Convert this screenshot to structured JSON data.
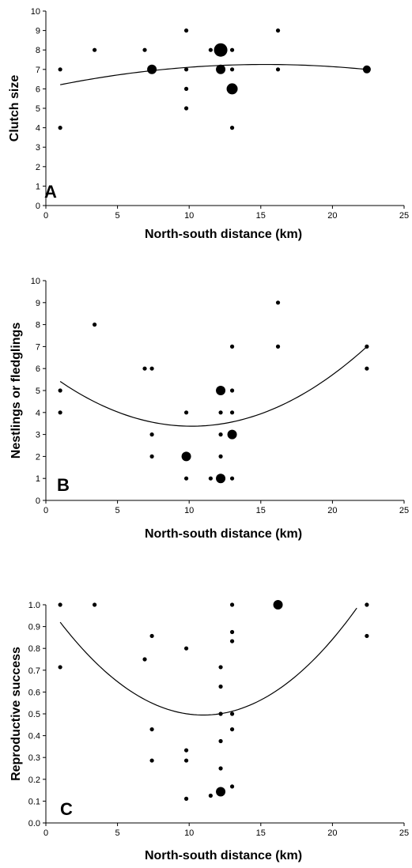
{
  "chart_data": [
    {
      "type": "scatter",
      "panel_label": "A",
      "xlabel": "North-south distance (km)",
      "ylabel": "Clutch size",
      "xlim": [
        0,
        25
      ],
      "ylim": [
        0,
        10
      ],
      "xticks": [
        0,
        5,
        10,
        15,
        20,
        25
      ],
      "yticks": [
        0,
        1,
        2,
        3,
        4,
        5,
        6,
        7,
        8,
        9,
        10
      ],
      "ytick_labels": [
        "0",
        "1",
        "2",
        "3",
        "4",
        "5",
        "6",
        "7",
        "8",
        "9",
        "10"
      ],
      "points": [
        {
          "x": 1.0,
          "y": 7,
          "n": 1
        },
        {
          "x": 1.0,
          "y": 4,
          "n": 1
        },
        {
          "x": 3.4,
          "y": 8,
          "n": 1
        },
        {
          "x": 6.9,
          "y": 8,
          "n": 1
        },
        {
          "x": 7.4,
          "y": 7,
          "n": 3
        },
        {
          "x": 9.8,
          "y": 9,
          "n": 1
        },
        {
          "x": 9.8,
          "y": 7,
          "n": 1
        },
        {
          "x": 9.8,
          "y": 6,
          "n": 1
        },
        {
          "x": 9.8,
          "y": 5,
          "n": 1
        },
        {
          "x": 11.5,
          "y": 8,
          "n": 1
        },
        {
          "x": 12.2,
          "y": 8,
          "n": 5
        },
        {
          "x": 12.2,
          "y": 7,
          "n": 3
        },
        {
          "x": 13.0,
          "y": 8,
          "n": 1
        },
        {
          "x": 13.0,
          "y": 7,
          "n": 1
        },
        {
          "x": 13.0,
          "y": 6,
          "n": 4
        },
        {
          "x": 13.0,
          "y": 4,
          "n": 1
        },
        {
          "x": 16.2,
          "y": 9,
          "n": 1
        },
        {
          "x": 16.2,
          "y": 7,
          "n": 1
        },
        {
          "x": 22.4,
          "y": 7,
          "n": 2
        }
      ],
      "fit_curve": {
        "type": "quadratic",
        "x_range": [
          1,
          22.4
        ],
        "coefficients": [
          6.06,
          0.1561,
          -0.0051
        ]
      }
    },
    {
      "type": "scatter",
      "panel_label": "B",
      "xlabel": "North-south distance (km)",
      "ylabel": "Nestlings or fledglings",
      "xlim": [
        0,
        25
      ],
      "ylim": [
        0,
        10
      ],
      "xticks": [
        0,
        5,
        10,
        15,
        20,
        25
      ],
      "yticks": [
        0,
        1,
        2,
        3,
        4,
        5,
        6,
        7,
        8,
        9,
        10
      ],
      "ytick_labels": [
        "0",
        "1",
        "2",
        "3",
        "4",
        "5",
        "6",
        "7",
        "8",
        "9",
        "10"
      ],
      "points": [
        {
          "x": 1.0,
          "y": 5,
          "n": 1
        },
        {
          "x": 1.0,
          "y": 4,
          "n": 1
        },
        {
          "x": 3.4,
          "y": 8,
          "n": 1
        },
        {
          "x": 6.9,
          "y": 6,
          "n": 1
        },
        {
          "x": 7.4,
          "y": 6,
          "n": 1
        },
        {
          "x": 7.4,
          "y": 3,
          "n": 1
        },
        {
          "x": 7.4,
          "y": 2,
          "n": 1
        },
        {
          "x": 9.8,
          "y": 4,
          "n": 1
        },
        {
          "x": 9.8,
          "y": 2,
          "n": 3
        },
        {
          "x": 9.8,
          "y": 1,
          "n": 1
        },
        {
          "x": 11.5,
          "y": 1,
          "n": 1
        },
        {
          "x": 12.2,
          "y": 5,
          "n": 3
        },
        {
          "x": 12.2,
          "y": 4,
          "n": 1
        },
        {
          "x": 12.2,
          "y": 3,
          "n": 1
        },
        {
          "x": 12.2,
          "y": 2,
          "n": 1
        },
        {
          "x": 12.2,
          "y": 1,
          "n": 3
        },
        {
          "x": 13.0,
          "y": 7,
          "n": 1
        },
        {
          "x": 13.0,
          "y": 5,
          "n": 1
        },
        {
          "x": 13.0,
          "y": 4,
          "n": 1
        },
        {
          "x": 13.0,
          "y": 3,
          "n": 3
        },
        {
          "x": 13.0,
          "y": 1,
          "n": 1
        },
        {
          "x": 16.2,
          "y": 9,
          "n": 1
        },
        {
          "x": 16.2,
          "y": 7,
          "n": 1
        },
        {
          "x": 22.4,
          "y": 7,
          "n": 1
        },
        {
          "x": 22.4,
          "y": 6,
          "n": 1
        }
      ],
      "fit_curve": {
        "type": "quadratic",
        "x_range": [
          1,
          22.4
        ],
        "coefficients": [
          5.88,
          -0.4923,
          0.0242
        ]
      }
    },
    {
      "type": "scatter",
      "panel_label": "C",
      "xlabel": "North-south distance (km)",
      "ylabel": "Reproductive success",
      "xlim": [
        0,
        25
      ],
      "ylim": [
        0,
        1
      ],
      "xticks": [
        0,
        5,
        10,
        15,
        20,
        25
      ],
      "yticks": [
        0,
        0.1,
        0.2,
        0.3,
        0.4,
        0.5,
        0.6,
        0.7,
        0.8,
        0.9,
        1.0
      ],
      "ytick_labels": [
        "0.0",
        "0.1",
        "0.2",
        "0.3",
        "0.4",
        "0.5",
        "0.6",
        "0.7",
        "0.8",
        "0.9",
        "1.0"
      ],
      "points": [
        {
          "x": 1.0,
          "y": 1.0,
          "n": 1
        },
        {
          "x": 1.0,
          "y": 0.714,
          "n": 1
        },
        {
          "x": 3.4,
          "y": 1.0,
          "n": 1
        },
        {
          "x": 6.9,
          "y": 0.75,
          "n": 1
        },
        {
          "x": 7.4,
          "y": 0.857,
          "n": 1
        },
        {
          "x": 7.4,
          "y": 0.429,
          "n": 1
        },
        {
          "x": 7.4,
          "y": 0.286,
          "n": 1
        },
        {
          "x": 9.8,
          "y": 0.8,
          "n": 1
        },
        {
          "x": 9.8,
          "y": 0.333,
          "n": 1
        },
        {
          "x": 9.8,
          "y": 0.286,
          "n": 1
        },
        {
          "x": 9.8,
          "y": 0.111,
          "n": 1
        },
        {
          "x": 11.5,
          "y": 0.125,
          "n": 1
        },
        {
          "x": 12.2,
          "y": 0.714,
          "n": 1
        },
        {
          "x": 12.2,
          "y": 0.625,
          "n": 1
        },
        {
          "x": 12.2,
          "y": 0.5,
          "n": 1
        },
        {
          "x": 12.2,
          "y": 0.375,
          "n": 1
        },
        {
          "x": 12.2,
          "y": 0.25,
          "n": 1
        },
        {
          "x": 12.2,
          "y": 0.143,
          "n": 3
        },
        {
          "x": 13.0,
          "y": 1.0,
          "n": 1
        },
        {
          "x": 13.0,
          "y": 0.875,
          "n": 1
        },
        {
          "x": 13.0,
          "y": 0.833,
          "n": 1
        },
        {
          "x": 13.0,
          "y": 0.5,
          "n": 1
        },
        {
          "x": 13.0,
          "y": 0.429,
          "n": 1
        },
        {
          "x": 13.0,
          "y": 0.167,
          "n": 1
        },
        {
          "x": 16.2,
          "y": 1.0,
          "n": 3
        },
        {
          "x": 22.4,
          "y": 1.0,
          "n": 1
        },
        {
          "x": 22.4,
          "y": 0.857,
          "n": 1
        }
      ],
      "fit_curve": {
        "type": "quadratic",
        "x_range": [
          1,
          21.7
        ],
        "coefficients": [
          1.0096,
          -0.0938,
          0.00427
        ]
      }
    }
  ]
}
